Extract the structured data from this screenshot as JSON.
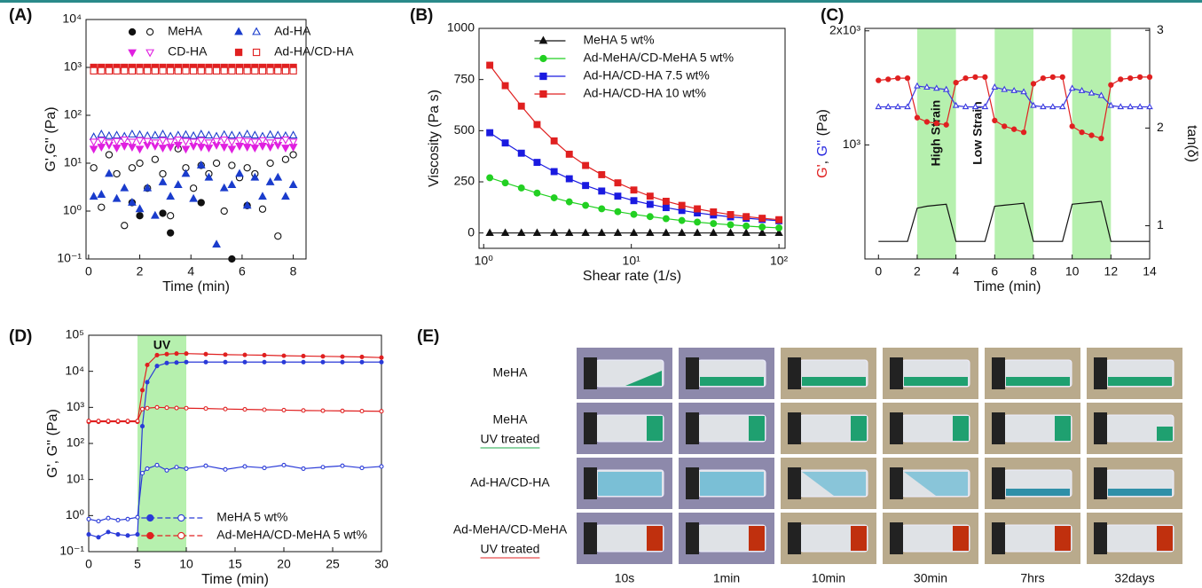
{
  "chart_data": [
    {
      "type": "scatter",
      "panel": "(A)",
      "xlabel": "Time (min)",
      "ylabel": "G',G'' (Pa)",
      "xlim": [
        -0.1,
        8.5
      ],
      "xticks": [
        0,
        2,
        4,
        6,
        8
      ],
      "ylim": [
        0.1,
        10000
      ],
      "ylog": true,
      "yticks": [
        {
          "value": 0.1,
          "label": "10⁻¹"
        },
        {
          "value": 1,
          "label": "10⁰"
        },
        {
          "value": 10,
          "label": "10¹"
        },
        {
          "value": 100,
          "label": "10²"
        },
        {
          "value": 1000,
          "label": "10³"
        },
        {
          "value": 10000,
          "label": "10⁴"
        }
      ],
      "legend": "upper center",
      "x": [
        0.2,
        0.5,
        0.8,
        1.1,
        1.4,
        1.7,
        2.0,
        2.3,
        2.6,
        2.9,
        3.2,
        3.5,
        3.8,
        4.1,
        4.4,
        4.7,
        5.0,
        5.3,
        5.6,
        5.9,
        6.2,
        6.5,
        6.8,
        7.1,
        7.4,
        7.7,
        8.0
      ],
      "series": [
        {
          "name": "MeHA",
          "color": "#111111",
          "marker": "circle",
          "values": [
            null,
            null,
            null,
            null,
            null,
            1.5,
            0.8,
            null,
            null,
            0.9,
            0.35,
            null,
            null,
            null,
            1.5,
            null,
            null,
            null,
            0.1,
            null,
            1.3,
            null,
            null,
            null,
            null,
            null,
            null
          ],
          "values_open": [
            8,
            1.2,
            15,
            6,
            0.5,
            8,
            10,
            3,
            12,
            6,
            0.8,
            20,
            8,
            3,
            9,
            6,
            10,
            1.0,
            9,
            5,
            8,
            6,
            1.1,
            10,
            0.3,
            12,
            15
          ]
        },
        {
          "name": "Ad-HA",
          "color": "#1a3ccc",
          "marker": "triangle",
          "values": [
            2,
            2.2,
            6,
            1.8,
            3,
            1.5,
            1.1,
            3,
            0.8,
            4,
            2,
            3.5,
            6,
            1.8,
            9,
            5,
            0.2,
            3,
            3.5,
            6,
            1.3,
            5,
            2,
            4,
            5,
            2,
            3.5
          ],
          "values_open": [
            35,
            40,
            37,
            38,
            36,
            40,
            39,
            37,
            38,
            40,
            36,
            38,
            39,
            37,
            40,
            38,
            36,
            39,
            38,
            37,
            40,
            38,
            36,
            39,
            38,
            37,
            38
          ]
        },
        {
          "name": "CD-HA",
          "color": "#e020e0",
          "marker": "triangle-down",
          "values": [
            20,
            22,
            24,
            21,
            23,
            22,
            20,
            24,
            23,
            21,
            22,
            24,
            20,
            23,
            22,
            21,
            24,
            22,
            20,
            23,
            22,
            21,
            23,
            22,
            24,
            21,
            22
          ],
          "values_open": [
            28,
            30,
            27,
            29,
            31,
            28,
            30,
            29,
            27,
            30,
            28,
            31,
            29,
            28,
            30,
            27,
            29,
            31,
            28,
            30,
            29,
            28,
            30,
            27,
            29,
            31,
            28
          ]
        },
        {
          "name": "Ad-HA/CD-HA",
          "color": "#e02020",
          "marker": "square",
          "values": [
            1000,
            1000,
            1000,
            1000,
            1000,
            1000,
            1000,
            1000,
            1000,
            1000,
            1000,
            1000,
            1000,
            1000,
            1000,
            1000,
            1000,
            1000,
            1000,
            1000,
            1000,
            1000,
            1000,
            1000,
            1000,
            1000,
            1000
          ],
          "values_open": [
            850,
            850,
            850,
            850,
            850,
            850,
            850,
            850,
            850,
            850,
            850,
            850,
            850,
            850,
            850,
            850,
            850,
            850,
            850,
            850,
            850,
            850,
            850,
            850,
            850,
            850,
            850
          ]
        }
      ]
    },
    {
      "type": "line",
      "panel": "(B)",
      "xlabel": "Shear rate (1/s)",
      "ylabel": "Viscosity (Pa s)",
      "xlim": [
        0.93,
        110
      ],
      "xlog": true,
      "xticks": [
        {
          "value": 1,
          "label": "10⁰"
        },
        {
          "value": 10,
          "label": "10¹"
        },
        {
          "value": 100,
          "label": "10²"
        }
      ],
      "ylim": [
        -75,
        1000
      ],
      "yticks": [
        0,
        250,
        500,
        750,
        1000
      ],
      "legend": "upper center",
      "x": [
        1.1,
        1.4,
        1.8,
        2.3,
        3,
        3.8,
        4.9,
        6.3,
        8.1,
        10.4,
        13.4,
        17.2,
        22,
        28,
        36,
        47,
        60,
        77,
        100
      ],
      "series": [
        {
          "name": "MeHA 5 wt%",
          "color": "#111111",
          "marker": "triangle",
          "values": [
            0,
            0,
            0,
            0,
            0,
            0,
            0,
            0,
            0,
            0,
            0,
            0,
            0,
            0,
            0,
            0,
            0,
            0,
            0
          ]
        },
        {
          "name": "Ad-MeHA/CD-MeHA 5 wt%",
          "color": "#22d022",
          "marker": "circle",
          "values": [
            270,
            245,
            220,
            195,
            172,
            152,
            135,
            118,
            104,
            91,
            80,
            70,
            61,
            53,
            46,
            40,
            34,
            29,
            25
          ]
        },
        {
          "name": "Ad-HA/CD-HA 7.5 wt%",
          "color": "#1a1ae0",
          "marker": "square",
          "values": [
            490,
            440,
            390,
            345,
            300,
            265,
            232,
            205,
            180,
            158,
            140,
            124,
            110,
            98,
            88,
            79,
            72,
            66,
            60
          ]
        },
        {
          "name": "Ad-HA/CD-HA 10 wt%",
          "color": "#e02020",
          "marker": "square",
          "values": [
            820,
            720,
            620,
            530,
            450,
            385,
            330,
            285,
            245,
            210,
            180,
            155,
            135,
            118,
            103,
            90,
            80,
            72,
            65
          ]
        }
      ]
    },
    {
      "type": "line",
      "panel": "(C)",
      "xlabel": "Time (min)",
      "ylabel_parts": [
        {
          "text": "G'",
          "color": "#e02020"
        },
        {
          "text": ", ",
          "color": "#111111"
        },
        {
          "text": "G''",
          "color": "#2a2ae0"
        },
        {
          "text": " (Pa)",
          "color": "#111111"
        }
      ],
      "y2label": "tan(δ)",
      "xlim": [
        -0.7,
        14
      ],
      "xticks": [
        0,
        2,
        4,
        6,
        8,
        10,
        12,
        14
      ],
      "ylim": [
        500,
        2030
      ],
      "ylog": true,
      "yticks": [
        {
          "value": 1000,
          "label": "10³"
        },
        {
          "value": 2000,
          "label": "2x10³"
        }
      ],
      "y2lim": [
        0.66,
        3.02
      ],
      "y2ticks": [
        1,
        2,
        3
      ],
      "bands": [
        {
          "from": 2,
          "to": 4
        },
        {
          "from": 6,
          "to": 8
        },
        {
          "from": 10,
          "to": 12
        }
      ],
      "band_color": "#b6f0ae",
      "annotations": [
        "High Strain",
        "Low Strain"
      ],
      "x": [
        0,
        0.5,
        1,
        1.5,
        2,
        2.5,
        3,
        3.5,
        4,
        4.5,
        5,
        5.5,
        6,
        6.5,
        7,
        7.5,
        8,
        8.5,
        9,
        9.5,
        10,
        10.5,
        11,
        11.5,
        12,
        12.5,
        13,
        13.5,
        14
      ],
      "series": [
        {
          "color": "#e02020",
          "marker": "circle",
          "values": [
            1480,
            1490,
            1500,
            1500,
            1180,
            1150,
            1140,
            1130,
            1460,
            1500,
            1510,
            1510,
            1160,
            1120,
            1100,
            1080,
            1450,
            1500,
            1510,
            1510,
            1120,
            1080,
            1060,
            1040,
            1440,
            1490,
            1500,
            1510,
            1510
          ]
        },
        {
          "color": "#3a3ae0",
          "marker": "triangle",
          "values_open": [
            1260,
            1260,
            1260,
            1260,
            1430,
            1420,
            1410,
            1400,
            1270,
            1260,
            1260,
            1260,
            1420,
            1400,
            1390,
            1380,
            1270,
            1260,
            1260,
            1260,
            1410,
            1390,
            1370,
            1350,
            1270,
            1260,
            1260,
            1260,
            1260
          ]
        },
        {
          "color": "#111111",
          "axis": "y2",
          "values": [
            0.84,
            0.84,
            0.84,
            0.84,
            1.18,
            1.2,
            1.21,
            1.22,
            0.84,
            0.84,
            0.84,
            0.84,
            1.2,
            1.21,
            1.22,
            1.23,
            0.84,
            0.84,
            0.84,
            0.84,
            1.22,
            1.23,
            1.24,
            1.25,
            0.84,
            0.84,
            0.84,
            0.84,
            0.84
          ]
        }
      ]
    },
    {
      "type": "line",
      "panel": "(D)",
      "xlabel": "Time (min)",
      "ylabel": "G', G'' (Pa)",
      "xlim": [
        0,
        30
      ],
      "xticks": [
        0,
        5,
        10,
        15,
        20,
        25,
        30
      ],
      "ylim": [
        0.1,
        100000
      ],
      "ylog": true,
      "yticks": [
        {
          "value": 0.1,
          "label": "10⁻¹"
        },
        {
          "value": 1,
          "label": "10⁰"
        },
        {
          "value": 10,
          "label": "10¹"
        },
        {
          "value": 100,
          "label": "10²"
        },
        {
          "value": 1000,
          "label": "10³"
        },
        {
          "value": 10000,
          "label": "10⁴"
        },
        {
          "value": 100000,
          "label": "10⁵"
        }
      ],
      "bands": [
        {
          "from": 5,
          "to": 10,
          "label": "UV"
        }
      ],
      "band_color": "#b6f0ae",
      "legend": "lower center",
      "x": [
        0,
        1,
        2,
        3,
        4,
        5,
        5.5,
        6,
        7,
        8,
        9,
        10,
        12,
        14,
        16,
        18,
        20,
        22,
        24,
        26,
        28,
        30
      ],
      "series": [
        {
          "name": "MeHA 5 wt%",
          "color": "#2a3ad8",
          "marker": "circle",
          "values": [
            0.3,
            0.25,
            0.35,
            0.3,
            0.28,
            0.3,
            300,
            5000,
            14000,
            17000,
            17500,
            18000,
            18000,
            18000,
            18000,
            18000,
            18000,
            18000,
            18000,
            18000,
            18000,
            18000
          ],
          "values_open": [
            0.8,
            0.7,
            0.85,
            0.75,
            0.8,
            0.9,
            15,
            20,
            25,
            18,
            22,
            20,
            24,
            19,
            23,
            21,
            25,
            20,
            22,
            24,
            21,
            23
          ]
        },
        {
          "name": "Ad-MeHA/CD-MeHA 5 wt%",
          "color": "#e02020",
          "marker": "circle",
          "values": [
            400,
            400,
            400,
            400,
            400,
            400,
            3000,
            15000,
            28000,
            30000,
            31000,
            31000,
            30000,
            29000,
            28500,
            28000,
            27000,
            26500,
            26000,
            25500,
            25000,
            24000
          ],
          "values_open": [
            420,
            420,
            420,
            420,
            420,
            420,
            900,
            950,
            1000,
            980,
            960,
            950,
            930,
            900,
            880,
            860,
            840,
            820,
            810,
            800,
            790,
            780
          ]
        }
      ]
    }
  ],
  "photo_panel": {
    "panel": "(E)",
    "rows": [
      {
        "lines": [
          "MeHA"
        ],
        "color": "#111111"
      },
      {
        "lines": [
          "MeHA",
          "UV treated"
        ],
        "color": "#1faa4a"
      },
      {
        "lines": [
          "Ad-HA/CD-HA"
        ],
        "color": "#4a4ad0"
      },
      {
        "lines": [
          "Ad-MeHA/CD-MeHA",
          "UV treated"
        ],
        "color": "#e02020"
      }
    ],
    "columns": [
      "10s",
      "1min",
      "10min",
      "30min",
      "7hrs",
      "32days"
    ]
  }
}
